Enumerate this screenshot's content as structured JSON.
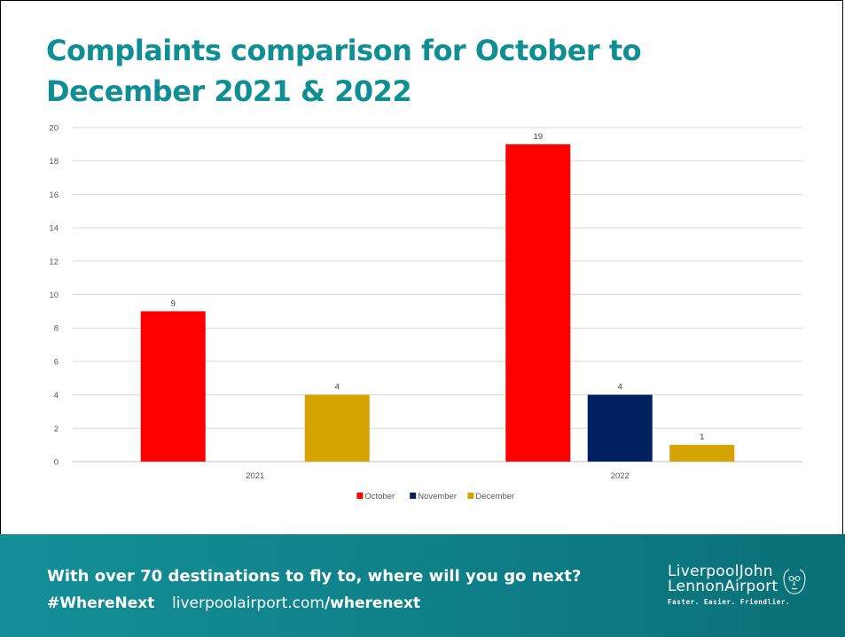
{
  "title": "Complaints comparison for October to December 2021 & 2022",
  "colors": {
    "October": "#ff0000",
    "November": "#002060",
    "December": "#d4a300",
    "title": "#0f8e93",
    "footer": "#10858d"
  },
  "chart_data": {
    "type": "bar",
    "categories": [
      "2021",
      "2022"
    ],
    "series": [
      {
        "name": "October",
        "values": [
          9,
          19
        ]
      },
      {
        "name": "November",
        "values": [
          null,
          4
        ]
      },
      {
        "name": "December",
        "values": [
          4,
          1
        ]
      }
    ],
    "ylim": [
      0,
      20
    ],
    "yticks": [
      "0",
      "2",
      "4",
      "6",
      "8",
      "10",
      "12",
      "14",
      "16",
      "18",
      "20"
    ],
    "grid": true,
    "legend": "bottom"
  },
  "footer": {
    "tagline": "With over 70 destinations to fly to, where will you go next?",
    "hashtag": "#WhereNext",
    "url_base": "liverpoolairport.com",
    "url_path": "/wherenext"
  },
  "logo": {
    "line1": "LiverpoolJohn",
    "line2": "LennonAirport",
    "line3": "Faster. Easier. Friendlier.",
    "icon": "lennon-face-icon"
  }
}
